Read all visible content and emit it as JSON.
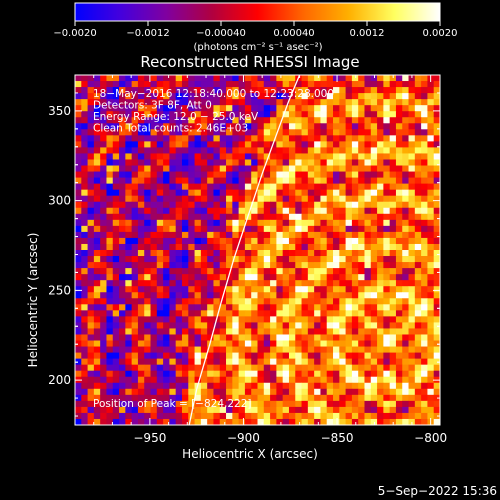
{
  "chart_data": {
    "type": "heatmap",
    "title": "Reconstructed RHESSI Image",
    "xlabel": "Heliocentric X (arcsec)",
    "ylabel": "Heliocentric Y (arcsec)",
    "xlim": [
      -990,
      -795
    ],
    "ylim": [
      175,
      370
    ],
    "x_ticks": [
      -950,
      -900,
      -850,
      -800
    ],
    "y_ticks": [
      200,
      250,
      300,
      350
    ],
    "x_tick_labels": [
      "−950",
      "−900",
      "−850",
      "−800"
    ],
    "y_tick_labels": [
      "200",
      "250",
      "300",
      "350"
    ],
    "colorbar": {
      "range": [
        -0.002,
        0.002
      ],
      "ticks": [
        -0.002,
        -0.0012,
        -0.0004,
        0.0004,
        0.0012,
        0.002
      ],
      "tick_labels": [
        "−0.0020",
        "−0.0012",
        "−0.00040",
        "0.00040",
        "0.0012",
        "0.0020"
      ],
      "units": "(photons cm⁻² s⁻¹ asec⁻²)",
      "colors": [
        "#0000ff",
        "#4400dd",
        "#8000a0",
        "#b00040",
        "#ff0000",
        "#ff6600",
        "#ffb000",
        "#ffff60",
        "#ffffff"
      ]
    },
    "annotations": [
      "18−May−2016 12:18:40.000 to 12:23:28.000",
      "Detectors: 3F 8F, Att 0",
      "Energy Range: 12.0 − 25.0 keV",
      "Clean     Total counts: 2.46E+03"
    ],
    "peak_label": "Position of Peak = [−824,222]",
    "peak": [
      -824,
      222
    ],
    "limb_curve": {
      "x": [
        -929,
        -925,
        -918,
        -912,
        -905,
        -898,
        -890,
        -883,
        -876,
        -870
      ],
      "y": [
        175,
        195,
        220,
        243,
        268,
        290,
        315,
        335,
        355,
        370
      ]
    },
    "grid": false
  },
  "footer": {
    "timestamp": "5−Sep−2022 15:36"
  }
}
